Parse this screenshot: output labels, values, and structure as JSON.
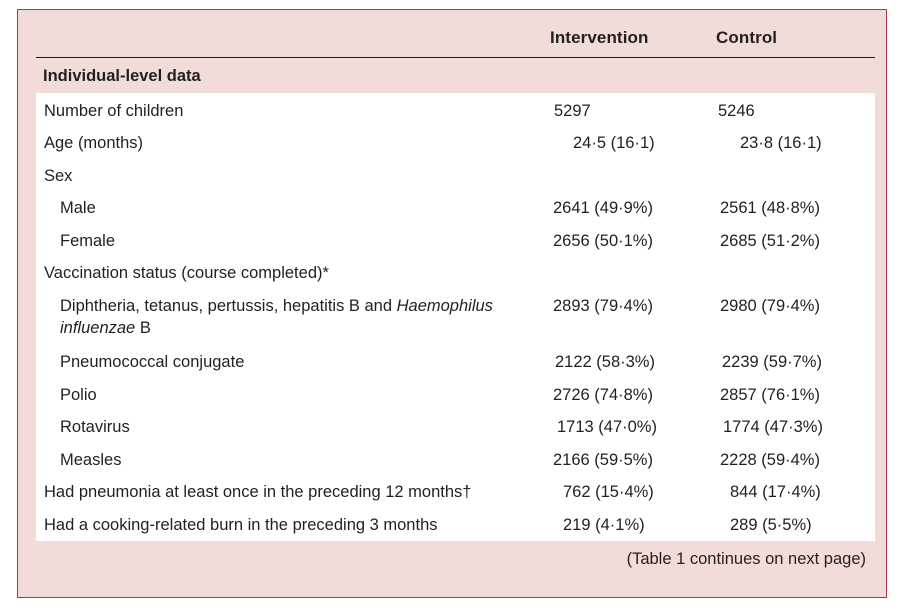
{
  "table": {
    "headers": {
      "intervention": "Intervention",
      "control": "Control"
    },
    "section_title": "Individual-level data",
    "rows": [
      {
        "label": "Number of children",
        "intervention": "5297",
        "control": "5246"
      },
      {
        "label": "Age (months)",
        "intervention": "24·5 (16·1)",
        "control": "23·8 (16·1)"
      },
      {
        "label": "Sex",
        "intervention": "",
        "control": ""
      },
      {
        "label": "Male",
        "intervention": "2641 (49·9%)",
        "control": "2561 (48·8%)"
      },
      {
        "label": "Female",
        "intervention": "2656 (50·1%)",
        "control": "2685 (51·2%)"
      },
      {
        "label": "Vaccination status (course completed)*",
        "intervention": "",
        "control": ""
      },
      {
        "label": "Diphtheria, tetanus, pertussis, hepatitis B and ",
        "label_italic": "Haemophilus influenzae",
        "label_after": " B",
        "intervention": "2893 (79·4%)",
        "control": "2980 (79·4%)"
      },
      {
        "label": "Pneumococcal conjugate",
        "intervention": "2122 (58·3%)",
        "control": "2239 (59·7%)"
      },
      {
        "label": "Polio",
        "intervention": "2726 (74·8%)",
        "control": "2857 (76·1%)"
      },
      {
        "label": "Rotavirus",
        "intervention": "1713 (47·0%)",
        "control": "1774 (47·3%)"
      },
      {
        "label": "Measles",
        "intervention": "2166 (59·5%)",
        "control": "2228 (59·4%)"
      },
      {
        "label": "Had pneumonia at least once in the preceding 12 months†",
        "intervention": "762 (15·4%)",
        "control": "844 (17·4%)"
      },
      {
        "label": "Had a cooking-related burn in the preceding 3 months",
        "intervention": "219 (4·1%)",
        "control": "289 (5·5%)"
      }
    ],
    "footer": "(Table 1 continues on next page)"
  }
}
